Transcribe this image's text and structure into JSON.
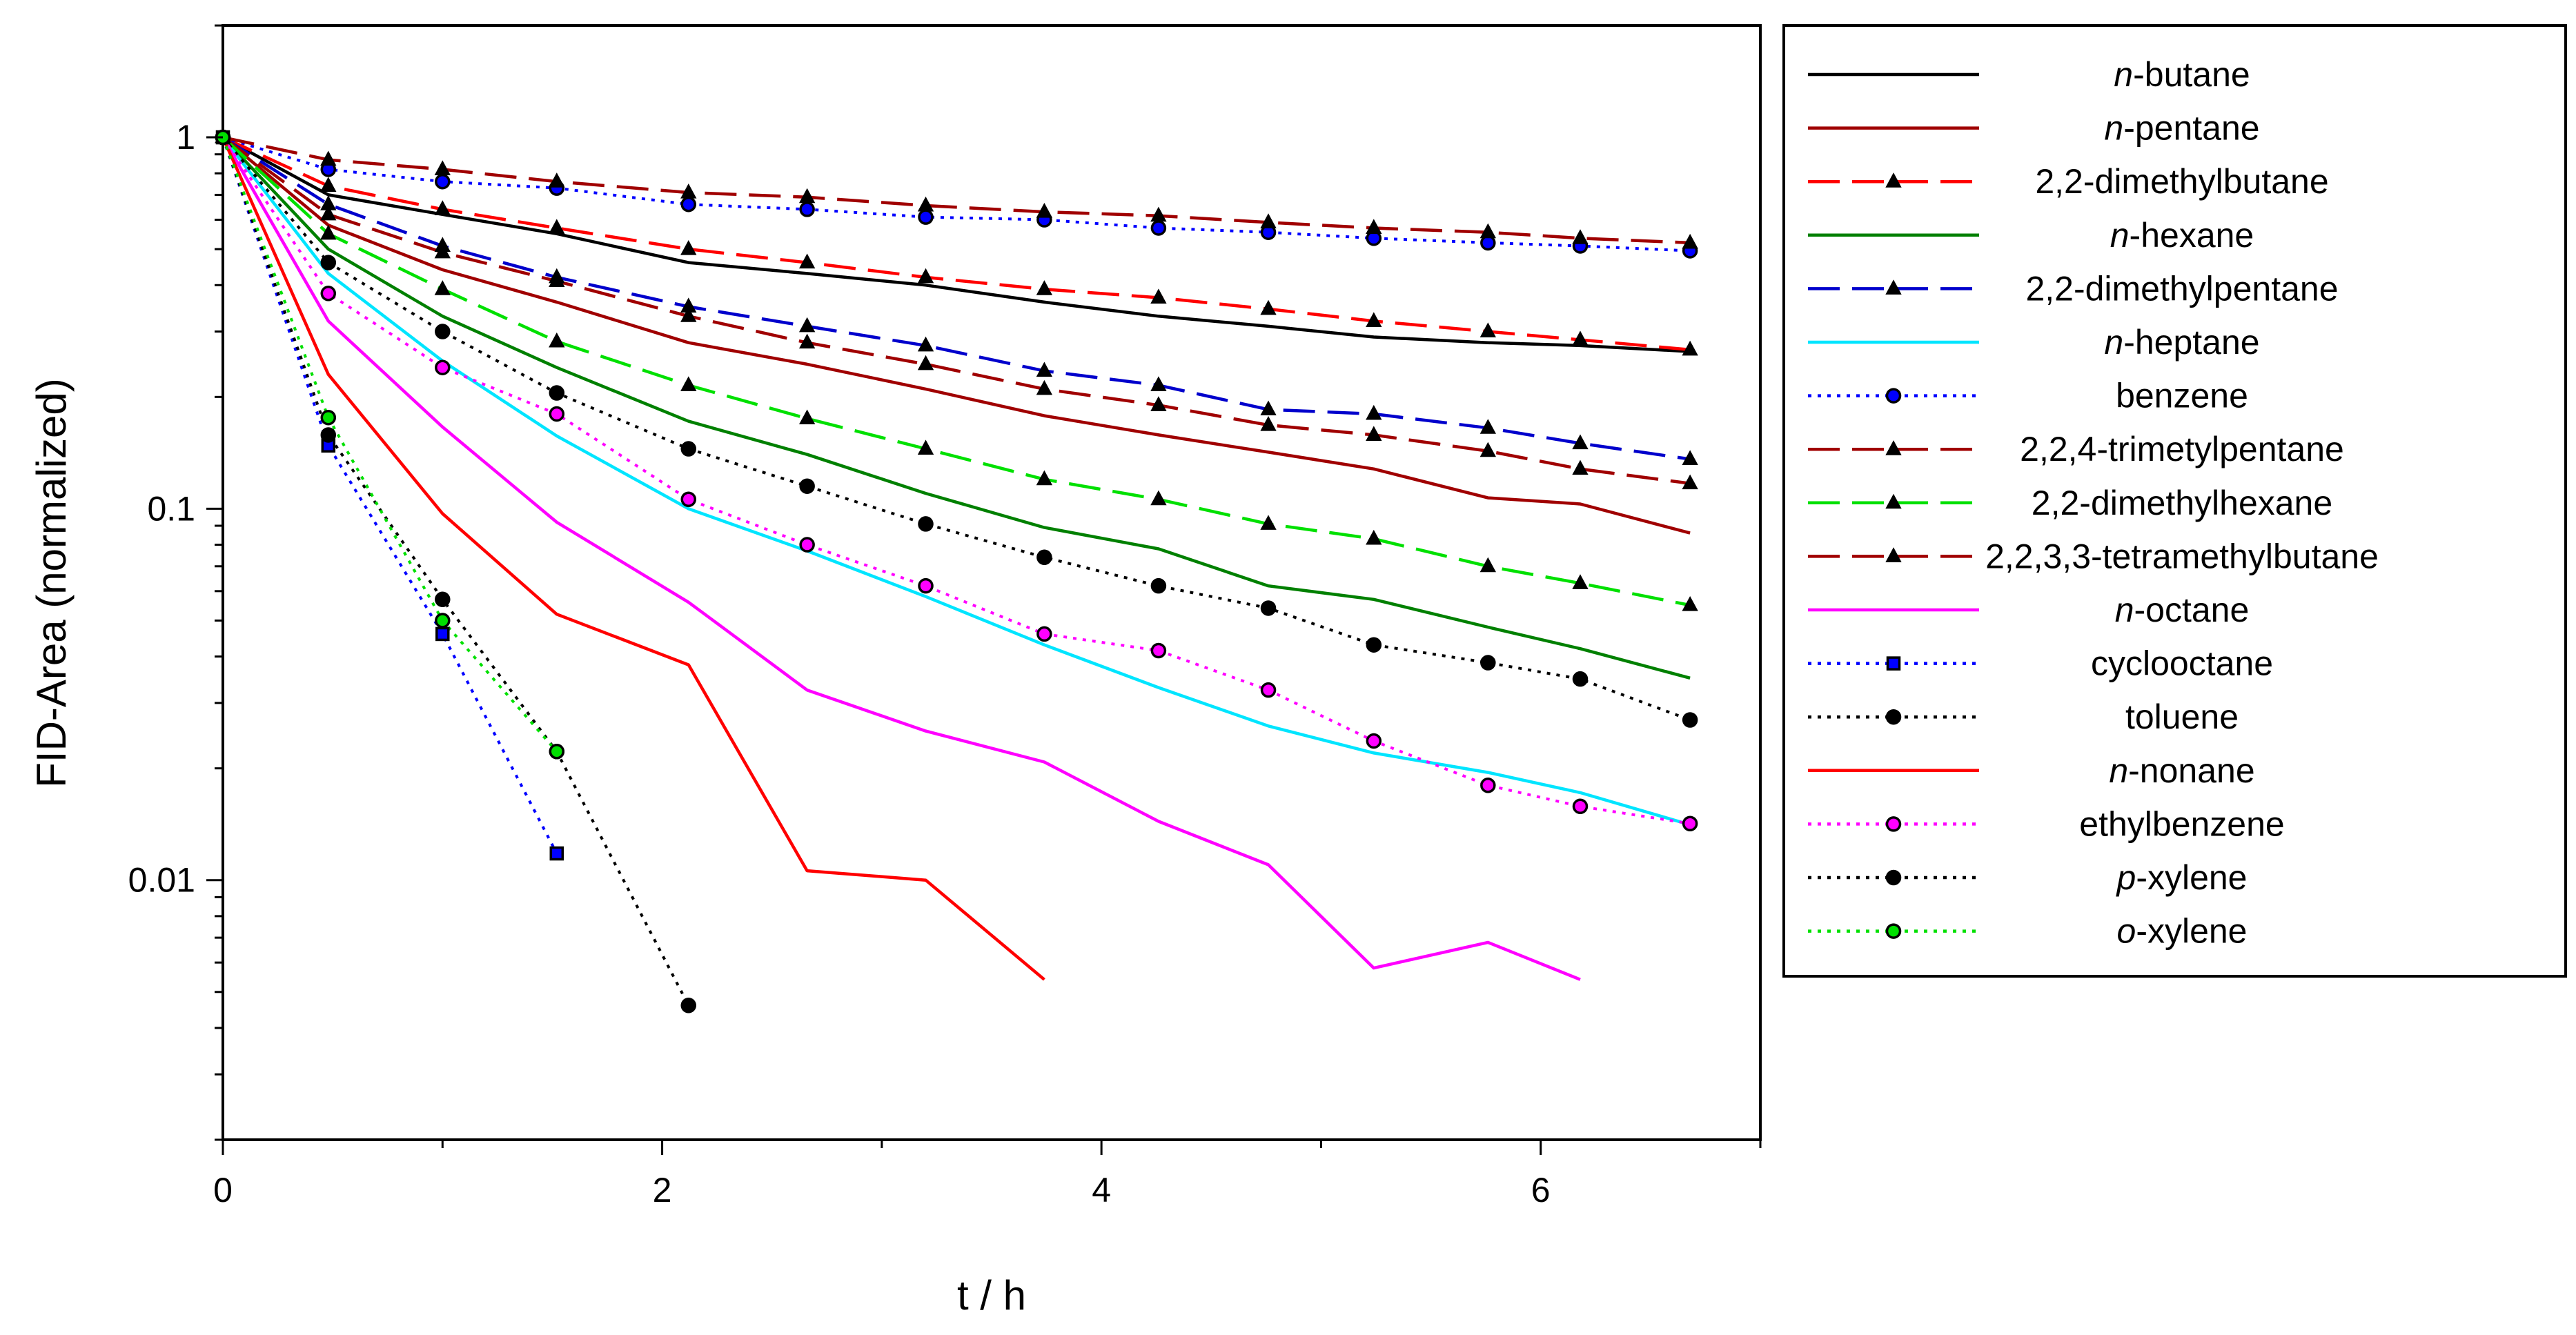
{
  "chart_data": {
    "type": "line",
    "title": "",
    "xlabel": "t / h",
    "ylabel": "FID-Area (normalized)",
    "xscale": "linear",
    "yscale": "log",
    "xlim": [
      0,
      7
    ],
    "ylim": [
      0.002,
      2
    ],
    "xticks": [
      "0",
      "2",
      "4",
      "6"
    ],
    "yticks": [
      "0.01",
      "0.1",
      "1"
    ],
    "legend_position": "right",
    "series": [
      {
        "name": "n-butane",
        "prefix": "n",
        "rest": "-butane",
        "color": "#000000",
        "dash": "solid",
        "marker": "none",
        "x": [
          0,
          0.48,
          1,
          1.52,
          2.12,
          2.66,
          3.2,
          3.74,
          4.26,
          4.76,
          5.24,
          5.76,
          6.18,
          6.68
        ],
        "y": [
          1,
          0.7,
          0.62,
          0.55,
          0.46,
          0.43,
          0.4,
          0.36,
          0.33,
          0.31,
          0.29,
          0.28,
          0.275,
          0.265
        ]
      },
      {
        "name": "n-pentane",
        "prefix": "n",
        "rest": "-pentane",
        "color": "#a00000",
        "dash": "solid",
        "marker": "none",
        "x": [
          0,
          0.48,
          1,
          1.52,
          2.12,
          2.66,
          3.2,
          3.74,
          4.26,
          4.76,
          5.24,
          5.76,
          6.18,
          6.68
        ],
        "y": [
          1,
          0.58,
          0.44,
          0.36,
          0.28,
          0.245,
          0.21,
          0.178,
          0.158,
          0.142,
          0.128,
          0.107,
          0.103,
          0.086
        ]
      },
      {
        "name": "2,2-dimethylbutane",
        "color": "#ff0000",
        "dash": "longdash",
        "marker": "triangle",
        "x": [
          0,
          0.48,
          1,
          1.52,
          2.12,
          2.66,
          3.2,
          3.74,
          4.26,
          4.76,
          5.24,
          5.76,
          6.18,
          6.68
        ],
        "y": [
          1,
          0.74,
          0.64,
          0.57,
          0.5,
          0.46,
          0.42,
          0.39,
          0.37,
          0.345,
          0.32,
          0.3,
          0.285,
          0.268
        ]
      },
      {
        "name": "n-hexane",
        "prefix": "n",
        "rest": "-hexane",
        "color": "#008000",
        "dash": "solid",
        "marker": "none",
        "x": [
          0,
          0.48,
          1,
          1.52,
          2.12,
          2.66,
          3.2,
          3.74,
          4.26,
          4.76,
          5.24,
          5.76,
          6.18,
          6.68
        ],
        "y": [
          1,
          0.5,
          0.33,
          0.24,
          0.172,
          0.14,
          0.11,
          0.089,
          0.078,
          0.062,
          0.057,
          0.048,
          0.042,
          0.035
        ]
      },
      {
        "name": "2,2-dimethylpentane",
        "color": "#0000cc",
        "dash": "longdash",
        "marker": "triangle",
        "x": [
          0,
          0.48,
          1,
          1.52,
          2.12,
          2.66,
          3.2,
          3.74,
          4.26,
          4.76,
          5.24,
          5.76,
          6.18,
          6.68
        ],
        "y": [
          1,
          0.66,
          0.51,
          0.42,
          0.35,
          0.31,
          0.275,
          0.235,
          0.215,
          0.185,
          0.18,
          0.165,
          0.15,
          0.136
        ]
      },
      {
        "name": "n-heptane",
        "prefix": "n",
        "rest": "-heptane",
        "color": "#00e5ff",
        "dash": "solid",
        "marker": "none",
        "x": [
          0,
          0.48,
          1,
          1.52,
          2.12,
          2.66,
          3.2,
          3.74,
          4.26,
          4.76,
          5.24,
          5.76,
          6.18,
          6.68
        ],
        "y": [
          1,
          0.43,
          0.25,
          0.157,
          0.1,
          0.077,
          0.058,
          0.043,
          0.033,
          0.026,
          0.022,
          0.0195,
          0.0172,
          0.0141
        ]
      },
      {
        "name": "benzene",
        "color": "#0000ff",
        "dash": "dotted",
        "marker": "circle",
        "x": [
          0,
          0.48,
          1,
          1.52,
          2.12,
          2.66,
          3.2,
          3.74,
          4.26,
          4.76,
          5.24,
          5.76,
          6.18,
          6.68
        ],
        "y": [
          1,
          0.82,
          0.76,
          0.73,
          0.66,
          0.64,
          0.61,
          0.6,
          0.57,
          0.555,
          0.535,
          0.52,
          0.51,
          0.495
        ]
      },
      {
        "name": "2,2,4-trimetylpentane",
        "color": "#a00000",
        "dash": "longdash",
        "marker": "triangle",
        "x": [
          0,
          0.48,
          1,
          1.52,
          2.12,
          2.66,
          3.2,
          3.74,
          4.26,
          4.76,
          5.24,
          5.76,
          6.18,
          6.68
        ],
        "y": [
          1,
          0.62,
          0.49,
          0.41,
          0.33,
          0.28,
          0.245,
          0.21,
          0.19,
          0.168,
          0.158,
          0.143,
          0.128,
          0.117
        ]
      },
      {
        "name": "2,2-dimethylhexane",
        "color": "#00e000",
        "dash": "longdash",
        "marker": "triangle",
        "x": [
          0,
          0.48,
          1,
          1.52,
          2.12,
          2.66,
          3.2,
          3.74,
          4.26,
          4.76,
          5.24,
          5.76,
          6.18,
          6.68
        ],
        "y": [
          1,
          0.55,
          0.39,
          0.282,
          0.215,
          0.175,
          0.145,
          0.12,
          0.106,
          0.091,
          0.083,
          0.07,
          0.063,
          0.055
        ]
      },
      {
        "name": "2,2,3,3-tetramethylbutane",
        "color": "#a00000",
        "dash": "longdash",
        "marker": "triangle",
        "x": [
          0,
          0.48,
          1,
          1.52,
          2.12,
          2.66,
          3.2,
          3.74,
          4.26,
          4.76,
          5.24,
          5.76,
          6.18,
          6.68
        ],
        "y": [
          1,
          0.87,
          0.82,
          0.76,
          0.71,
          0.69,
          0.655,
          0.63,
          0.615,
          0.59,
          0.57,
          0.555,
          0.535,
          0.52
        ]
      },
      {
        "name": "n-octane",
        "prefix": "n",
        "rest": "-octane",
        "color": "#ff00ff",
        "dash": "solid",
        "marker": "none",
        "x": [
          0,
          0.48,
          1,
          1.52,
          2.12,
          2.66,
          3.2,
          3.74,
          4.26,
          4.76,
          5.24,
          5.76,
          6.18
        ],
        "y": [
          1,
          0.32,
          0.166,
          0.092,
          0.056,
          0.0325,
          0.0252,
          0.0208,
          0.0144,
          0.011,
          0.0058,
          0.0068,
          0.0054
        ]
      },
      {
        "name": "cyclooctane",
        "color": "#0000ff",
        "dash": "dotted",
        "marker": "square",
        "x": [
          0,
          0.48,
          1,
          1.52
        ],
        "y": [
          1,
          0.148,
          0.046,
          0.0118
        ]
      },
      {
        "name": "toluene",
        "color": "#000000",
        "dash": "dotted",
        "marker": "circle",
        "x": [
          0,
          0.48,
          1,
          1.52,
          2.12,
          2.66,
          3.2,
          3.74,
          4.26,
          4.76,
          5.24,
          5.76,
          6.18,
          6.68
        ],
        "y": [
          1,
          0.46,
          0.3,
          0.205,
          0.145,
          0.115,
          0.091,
          0.074,
          0.062,
          0.054,
          0.043,
          0.0385,
          0.0348,
          0.027
        ]
      },
      {
        "name": "n-nonane",
        "prefix": "n",
        "rest": "-nonane",
        "color": "#ff0000",
        "dash": "solid",
        "marker": "none",
        "x": [
          0,
          0.48,
          1,
          1.52,
          2.12,
          2.66,
          3.2,
          3.74
        ],
        "y": [
          1,
          0.23,
          0.097,
          0.052,
          0.038,
          0.0106,
          0.01,
          0.0054
        ]
      },
      {
        "name": "ethylbenzene",
        "color": "#ff00ff",
        "dash": "dotted",
        "marker": "circle",
        "x": [
          0,
          0.48,
          1,
          1.52,
          2.12,
          2.66,
          3.2,
          3.74,
          4.26,
          4.76,
          5.24,
          5.76,
          6.18,
          6.68
        ],
        "y": [
          1,
          0.38,
          0.24,
          0.18,
          0.106,
          0.08,
          0.062,
          0.046,
          0.0415,
          0.0325,
          0.0237,
          0.018,
          0.0158,
          0.0142
        ]
      },
      {
        "name": "p-xylene",
        "prefix": "p",
        "rest": "-xylene",
        "color": "#000000",
        "dash": "dotted",
        "marker": "circle",
        "x": [
          0,
          0.48,
          1,
          1.52,
          2.12
        ],
        "y": [
          1,
          0.158,
          0.057,
          0.0222,
          0.0046
        ]
      },
      {
        "name": "o-xylene",
        "prefix": "o",
        "rest": "-xylene",
        "color": "#00e000",
        "dash": "dotted",
        "marker": "circle",
        "x": [
          0,
          0.48,
          1,
          1.52
        ],
        "y": [
          1,
          0.176,
          0.05,
          0.0222
        ]
      }
    ]
  }
}
